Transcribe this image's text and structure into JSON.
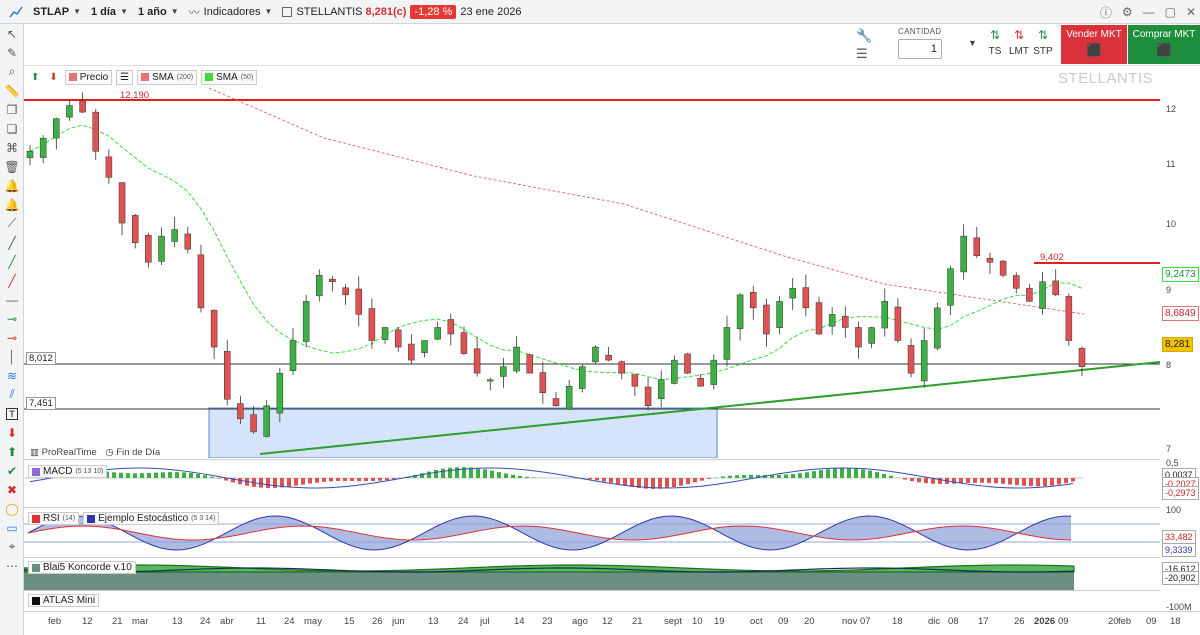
{
  "toolbar": {
    "symbol": "STLAP",
    "interval": "1 día",
    "period": "1 año",
    "indicators": "Indicadores",
    "name": "STELLANTIS",
    "price": "8,281(c)",
    "change": "-1,28 %",
    "date": "23 ene 2026"
  },
  "order": {
    "qty_label": "CANTIDAD",
    "qty": "1",
    "ts": "TS",
    "lmt": "LMT",
    "stp": "STP",
    "sell": "Vender MKT",
    "buy": "Comprar MKT"
  },
  "legend": {
    "precio": "Precio",
    "sma200": "SMA",
    "sma200_p": "(200)",
    "sma50": "SMA",
    "sma50_p": "(50)"
  },
  "watermark": "STELLANTIS",
  "levels": {
    "top_line": "12,190",
    "mid_line": "9,402",
    "low_line": "8,012",
    "box_line": "7,451"
  },
  "yaxis": {
    "ticks": [
      "12",
      "11",
      "10",
      "9",
      "8",
      "7"
    ],
    "sma50_val": "9,2473",
    "sma200_val": "8,6849",
    "last_val": "8,281"
  },
  "footer_note": {
    "brand": "ProRealTime",
    "mode": "Fin de Día"
  },
  "subs": {
    "macd": "MACD",
    "macd_p": "(5 13 10)",
    "macd_vals": [
      "0,5",
      "0,0037",
      "-0,2027",
      "-0,2973"
    ],
    "rsi": "RSI",
    "rsi_p": "(14)",
    "stoch": "Ejemplo Estocástico",
    "stoch_p": "(5 3 14)",
    "rsi_vals": [
      "100",
      "33,482",
      "9,3339",
      "0"
    ],
    "konc": "Blai5 Koncorde v.10",
    "konc_vals": [
      "-16,612",
      "-20,902"
    ],
    "atlas": "ATLAS Mini",
    "atlas_vals": [
      "-100M"
    ]
  },
  "xaxis": [
    {
      "t": "feb",
      "b": false
    },
    {
      "t": "12",
      "b": false
    },
    {
      "t": "21",
      "b": false
    },
    {
      "t": "mar",
      "b": false
    },
    {
      "t": "13",
      "b": false
    },
    {
      "t": "24",
      "b": false
    },
    {
      "t": "abr",
      "b": false
    },
    {
      "t": "11",
      "b": false
    },
    {
      "t": "24",
      "b": false
    },
    {
      "t": "may",
      "b": false
    },
    {
      "t": "15",
      "b": false
    },
    {
      "t": "26",
      "b": false
    },
    {
      "t": "jun",
      "b": false
    },
    {
      "t": "13",
      "b": false
    },
    {
      "t": "24",
      "b": false
    },
    {
      "t": "jul",
      "b": false
    },
    {
      "t": "14",
      "b": false
    },
    {
      "t": "23",
      "b": false
    },
    {
      "t": "ago",
      "b": false
    },
    {
      "t": "12",
      "b": false
    },
    {
      "t": "21",
      "b": false
    },
    {
      "t": "sept",
      "b": false
    },
    {
      "t": "10",
      "b": false
    },
    {
      "t": "19",
      "b": false
    },
    {
      "t": "oct",
      "b": false
    },
    {
      "t": "09",
      "b": false
    },
    {
      "t": "20",
      "b": false
    },
    {
      "t": "nov",
      "b": false
    },
    {
      "t": "07",
      "b": false
    },
    {
      "t": "18",
      "b": false
    },
    {
      "t": "dic",
      "b": false
    },
    {
      "t": "08",
      "b": false
    },
    {
      "t": "17",
      "b": false
    },
    {
      "t": "26",
      "b": false
    },
    {
      "t": "2026",
      "b": true
    },
    {
      "t": "09",
      "b": false
    },
    {
      "t": "20",
      "b": false
    },
    {
      "t": "feb",
      "b": false
    },
    {
      "t": "09",
      "b": false
    },
    {
      "t": "18",
      "b": false
    }
  ],
  "chart_data": {
    "type": "candlestick",
    "title": "STELLANTIS",
    "ylim": [
      6.9,
      12.6
    ],
    "y_ticks": [
      7,
      8,
      9,
      10,
      11,
      12
    ],
    "close_approx": [
      11.6,
      11.8,
      12.1,
      12.3,
      12.2,
      11.6,
      11.2,
      10.5,
      10.2,
      9.9,
      10.3,
      10.4,
      10.1,
      9.2,
      8.6,
      7.8,
      7.5,
      7.3,
      7.7,
      8.2,
      8.7,
      9.3,
      9.7,
      9.6,
      9.4,
      9.1,
      8.7,
      8.9,
      8.6,
      8.4,
      8.7,
      8.9,
      8.8,
      8.5,
      8.2,
      8.1,
      8.3,
      8.6,
      8.2,
      7.9,
      7.7,
      8.0,
      8.3,
      8.6,
      8.4,
      8.2,
      8.0,
      7.7,
      8.1,
      8.4,
      8.2,
      8.0,
      8.4,
      8.9,
      9.4,
      9.2,
      8.8,
      9.3,
      9.5,
      9.2,
      8.8,
      9.1,
      8.9,
      8.6,
      8.9,
      9.3,
      8.7,
      8.2,
      8.7,
      9.2,
      9.8,
      10.3,
      10.0,
      9.9,
      9.7,
      9.5,
      9.3,
      9.6,
      9.4,
      8.7,
      8.3
    ]
  }
}
